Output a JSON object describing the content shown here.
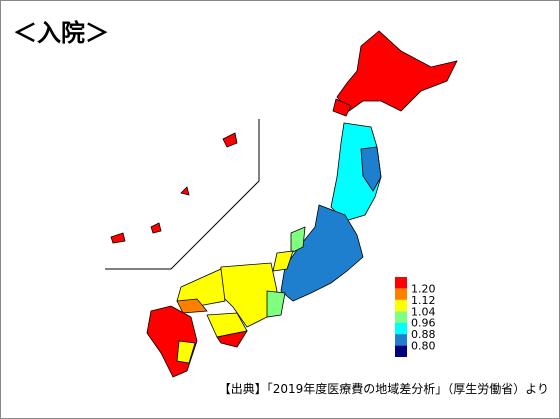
{
  "title": "＜入院＞",
  "legend": {
    "colors": [
      "#ff0000",
      "#ff7f00",
      "#ffff00",
      "#7fff7f",
      "#00ffff",
      "#1f7fcf",
      "#00007f"
    ],
    "ticks": [
      {
        "value": 1.2,
        "label": "1.20"
      },
      {
        "value": 1.12,
        "label": "1.12"
      },
      {
        "value": 1.04,
        "label": "1.04"
      },
      {
        "value": 0.96,
        "label": "0.96"
      },
      {
        "value": 0.88,
        "label": "0.88"
      },
      {
        "value": 0.8,
        "label": "0.80"
      }
    ]
  },
  "source": "【出典】「2019年度医療費の地域差分析」（厚生労働省）より"
}
